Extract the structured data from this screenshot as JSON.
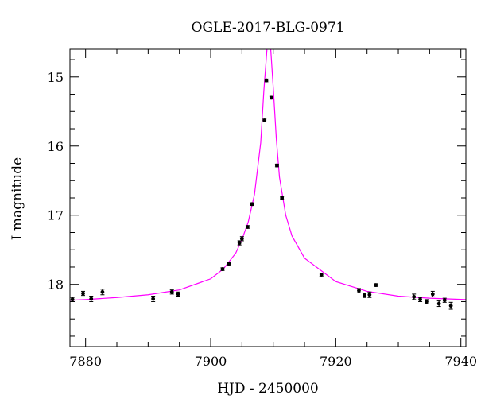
{
  "chart_data": {
    "type": "scatter",
    "title": "OGLE-2017-BLG-0971",
    "xlabel": "HJD - 2450000",
    "ylabel": "I magnitude",
    "xlim": [
      7877.5,
      7940.8
    ],
    "ylim": [
      18.9,
      14.6
    ],
    "y_inverted": true,
    "grid": false,
    "xticks": [
      7880,
      7900,
      7920,
      7940
    ],
    "yticks": [
      15,
      16,
      17,
      18
    ],
    "series": [
      {
        "kind": "points",
        "color": "#000000",
        "x": [
          7877.9,
          7879.6,
          7880.9,
          7882.7,
          7890.8,
          7893.8,
          7894.8,
          7901.9,
          7902.9,
          7904.6,
          7905.0,
          7905.9,
          7906.6,
          7908.6,
          7908.9,
          7909.7,
          7910.6,
          7911.4,
          7917.7,
          7923.7,
          7924.6,
          7925.4,
          7926.4,
          7932.5,
          7933.5,
          7934.5,
          7935.5,
          7936.5,
          7937.4,
          7938.4
        ],
        "y": [
          18.22,
          18.13,
          18.21,
          18.11,
          18.21,
          18.11,
          18.14,
          17.78,
          17.7,
          17.4,
          17.34,
          17.17,
          16.84,
          15.63,
          15.05,
          15.3,
          16.28,
          16.75,
          17.86,
          18.09,
          18.16,
          18.15,
          18.01,
          18.18,
          18.22,
          18.25,
          18.14,
          18.28,
          18.23,
          18.31
        ],
        "yerr": [
          0.03,
          0.03,
          0.04,
          0.04,
          0.04,
          0.03,
          0.03,
          0.02,
          0.02,
          0.03,
          0.03,
          0.02,
          0.02,
          0.02,
          0.02,
          0.02,
          0.02,
          0.02,
          0.02,
          0.03,
          0.03,
          0.04,
          0.02,
          0.04,
          0.03,
          0.03,
          0.04,
          0.04,
          0.03,
          0.05
        ]
      },
      {
        "kind": "model-curve",
        "color": "#ff00ff",
        "x": [
          7877.5,
          7880,
          7885,
          7890,
          7895,
          7900,
          7902,
          7904,
          7905,
          7906,
          7907,
          7908,
          7908.5,
          7909,
          7909.3,
          7909.6,
          7910,
          7910.5,
          7911,
          7912,
          7913,
          7915,
          7920,
          7925,
          7930,
          7935,
          7940.8
        ],
        "y": [
          18.23,
          18.22,
          18.19,
          18.15,
          18.08,
          17.92,
          17.78,
          17.55,
          17.35,
          17.1,
          16.7,
          15.95,
          15.2,
          14.6,
          14.55,
          14.6,
          15.15,
          15.9,
          16.45,
          17.0,
          17.3,
          17.62,
          17.96,
          18.1,
          18.17,
          18.2,
          18.22
        ]
      }
    ]
  }
}
